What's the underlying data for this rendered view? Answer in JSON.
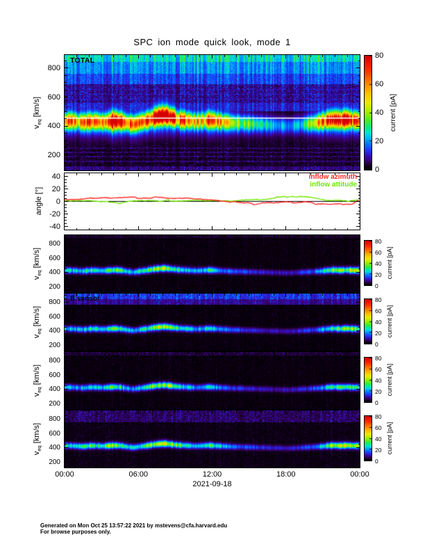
{
  "title": "SPC ion mode quick look, mode 1",
  "axis_labels": {
    "v_pre": "v",
    "v_sub": "eq",
    "v_post": " [km/s]",
    "angle": "angle [°]"
  },
  "x_axis": {
    "tick_labels": [
      "00:00",
      "06:00",
      "12:00",
      "18:00",
      "00:00"
    ],
    "date_label": "2021-09-18",
    "hours": 24
  },
  "footer": {
    "line1": "Generated on Mon Oct 25 13:57:22 2021 by mstevens@cfa.harvard.edu",
    "line2": "For browse purposes only."
  },
  "colors": {
    "background": "#ffffff",
    "frame": "#000000",
    "azimuth": "#ff2a2a",
    "attitude": "#70e800",
    "white_line": "#ffffff"
  },
  "chart_data": {
    "type": "heatmap",
    "x": {
      "unit": "hours",
      "range": [
        0,
        24
      ],
      "date": "2021-09-18"
    },
    "value_unit": "pA",
    "colormap_stops": [
      [
        0,
        0,
        0,
        0
      ],
      [
        3,
        25,
        0,
        40
      ],
      [
        6,
        58,
        0,
        112
      ],
      [
        10,
        48,
        18,
        190
      ],
      [
        14,
        28,
        62,
        255
      ],
      [
        18,
        0,
        120,
        255
      ],
      [
        22,
        0,
        182,
        255
      ],
      [
        26,
        0,
        232,
        205
      ],
      [
        30,
        16,
        235,
        120
      ],
      [
        34,
        70,
        235,
        45
      ],
      [
        40,
        160,
        240,
        0
      ],
      [
        47,
        235,
        235,
        0
      ],
      [
        54,
        255,
        190,
        0
      ],
      [
        62,
        255,
        120,
        0
      ],
      [
        70,
        255,
        48,
        0
      ],
      [
        80,
        215,
        0,
        0
      ]
    ],
    "sensor_band": {
      "sigma": 26,
      "halo_sigma": 50,
      "halo_frac": 0.22,
      "center": [
        430,
        430,
        425,
        420,
        430,
        430,
        425,
        430,
        435,
        430,
        415,
        405,
        420,
        430,
        445,
        455,
        460,
        450,
        440,
        435,
        430,
        425,
        430,
        435,
        430,
        425,
        420,
        415,
        415,
        410,
        410,
        405,
        405,
        400,
        400,
        395,
        395,
        400,
        405,
        410,
        415,
        420,
        430,
        435,
        430,
        435,
        430,
        430
      ],
      "intensity": [
        20,
        22,
        18,
        20,
        24,
        22,
        20,
        28,
        30,
        24,
        20,
        18,
        22,
        26,
        30,
        34,
        35,
        30,
        24,
        22,
        20,
        16,
        18,
        24,
        20,
        16,
        14,
        13,
        12,
        11,
        10,
        9,
        9,
        8,
        8,
        8,
        8,
        9,
        10,
        12,
        14,
        18,
        24,
        28,
        30,
        33,
        32,
        30
      ]
    },
    "panels": [
      {
        "id": "total",
        "kind": "spectrogram",
        "label": "TOTAL",
        "vrange": [
          95,
          890
        ],
        "yticks": [
          200,
          400,
          600,
          800
        ],
        "y_minor_step": 50,
        "white_line_v": 455,
        "seed": 11,
        "band_scale": 1.0,
        "band": {
          "sigma": 36,
          "halo_sigma": 85,
          "halo_frac": 0.3,
          "center": [
            430,
            435,
            430,
            425,
            430,
            430,
            425,
            430,
            435,
            430,
            420,
            410,
            425,
            435,
            450,
            465,
            470,
            460,
            445,
            440,
            435,
            430,
            435,
            440,
            435,
            430,
            425,
            420,
            420,
            415,
            415,
            410,
            410,
            405,
            405,
            400,
            400,
            405,
            410,
            415,
            420,
            430,
            440,
            445,
            440,
            445,
            440,
            435
          ],
          "intensity": [
            45,
            50,
            42,
            48,
            55,
            50,
            45,
            72,
            78,
            60,
            48,
            45,
            50,
            55,
            65,
            80,
            82,
            70,
            55,
            50,
            45,
            38,
            42,
            55,
            48,
            40,
            35,
            32,
            30,
            28,
            25,
            22,
            20,
            18,
            17,
            16,
            16,
            18,
            20,
            28,
            32,
            45,
            60,
            70,
            65,
            72,
            60,
            50
          ]
        },
        "layers": [
          [
            845,
            890,
            23,
            3
          ],
          [
            760,
            845,
            17,
            3
          ],
          [
            690,
            760,
            12,
            3
          ],
          [
            560,
            690,
            4.5,
            4.5
          ],
          [
            652,
            658,
            8.5,
            2
          ],
          [
            618,
            624,
            8.5,
            2
          ],
          [
            584,
            590,
            8.5,
            2
          ],
          [
            500,
            560,
            9,
            3
          ],
          [
            95,
            350,
            0.8,
            2.6
          ],
          [
            244,
            252,
            3.5,
            3
          ],
          [
            214,
            222,
            3.5,
            3
          ],
          [
            184,
            192,
            3.5,
            3
          ],
          [
            150,
            160,
            4,
            3
          ],
          [
            95,
            122,
            4.5,
            3
          ]
        ],
        "colorbar": {
          "label": "current [pA]",
          "ticks": [
            0,
            20,
            40,
            60,
            80
          ],
          "range": [
            0,
            80
          ]
        }
      },
      {
        "id": "angle",
        "kind": "line",
        "yticks": [
          -40,
          -20,
          0,
          20,
          40
        ],
        "y_minor_step": 5,
        "yrange": [
          -45,
          45
        ],
        "zero_line": 0,
        "series": [
          {
            "name": "inflow azimuth",
            "color": "#ff2a2a",
            "seed": 101,
            "values": [
              2,
              2.5,
              3,
              4,
              4.5,
              5,
              5.5,
              5,
              4.5,
              5,
              6,
              6.5,
              5,
              4.5,
              5,
              6,
              5.5,
              4.5,
              4,
              4.5,
              5,
              4,
              3,
              2.5,
              2,
              1,
              0,
              -2.5,
              -1.5,
              -2.5,
              -3,
              -6.5,
              -3,
              -2,
              -2.5,
              -2,
              -1.5,
              -2,
              -2.5,
              -2,
              -2,
              -6,
              -4,
              -5,
              -5,
              -5,
              -5,
              -4.5,
              2
            ]
          },
          {
            "name": "inflow attitude",
            "color": "#70e800",
            "seed": 202,
            "values": [
              0,
              0.5,
              0.5,
              0,
              0.5,
              0,
              -0.5,
              -1,
              -2,
              -4.5,
              -2,
              -0.5,
              0.5,
              1,
              0.5,
              0,
              0.5,
              1,
              0.5,
              0.5,
              1,
              1.5,
              1,
              0.5,
              0.5,
              1,
              0.5,
              0,
              0.5,
              1,
              1.5,
              2,
              2.5,
              3.5,
              5,
              6,
              6.5,
              7,
              6.5,
              7,
              6.5,
              4,
              1.5,
              1,
              2,
              1.5,
              0.5,
              1,
              1.5
            ]
          }
        ]
      },
      {
        "id": "a",
        "kind": "spectrogram",
        "vrange": [
          130,
          920
        ],
        "yticks": [
          200,
          400,
          600,
          800
        ],
        "y_minor_step": 50,
        "seed": 23,
        "band": "sensor_band",
        "band_scale": 1.0,
        "layers": [
          [
            130,
            920,
            0.25,
            1.2
          ],
          [
            885,
            920,
            1.2,
            2.2
          ]
        ],
        "colorbar": {
          "label": "current [pA]",
          "ticks": [
            0,
            20,
            40,
            60,
            80
          ],
          "range": [
            0,
            80
          ]
        }
      },
      {
        "id": "b",
        "kind": "spectrogram",
        "label": "B sensor",
        "vrange": [
          130,
          920
        ],
        "yticks": [
          200,
          400,
          600,
          800
        ],
        "y_minor_step": 50,
        "seed": 37,
        "band": "sensor_band",
        "band_scale": 0.95,
        "layers": [
          [
            130,
            920,
            0.25,
            1.2
          ],
          [
            845,
            920,
            10,
            4
          ],
          [
            772,
            845,
            5.5,
            3
          ]
        ],
        "colorbar": {
          "label": "current [pA]",
          "ticks": [
            0,
            20,
            40,
            60,
            80
          ],
          "range": [
            0,
            80
          ]
        }
      },
      {
        "id": "c",
        "kind": "spectrogram",
        "vrange": [
          130,
          920
        ],
        "yticks": [
          200,
          400,
          600,
          800
        ],
        "y_minor_step": 50,
        "seed": 51,
        "band": "sensor_band",
        "band_scale": 0.9,
        "layers": [
          [
            130,
            920,
            0.25,
            1.2
          ],
          [
            880,
            920,
            1.5,
            2.8
          ]
        ],
        "colorbar": {
          "label": "current [pA]",
          "ticks": [
            0,
            20,
            40,
            60,
            80
          ],
          "range": [
            0,
            80
          ]
        }
      },
      {
        "id": "d",
        "kind": "spectrogram",
        "vrange": [
          130,
          920
        ],
        "yticks": [
          200,
          400,
          600,
          800
        ],
        "y_minor_step": 50,
        "seed": 77,
        "band": "sensor_band",
        "band_scale": 1.1,
        "layers": [
          [
            130,
            920,
            0.45,
            1.5
          ],
          [
            760,
            920,
            3,
            3.6
          ]
        ],
        "colorbar": {
          "label": "current [pA]",
          "ticks": [
            0,
            20,
            40,
            60,
            80
          ],
          "range": [
            0,
            80
          ]
        }
      }
    ]
  }
}
